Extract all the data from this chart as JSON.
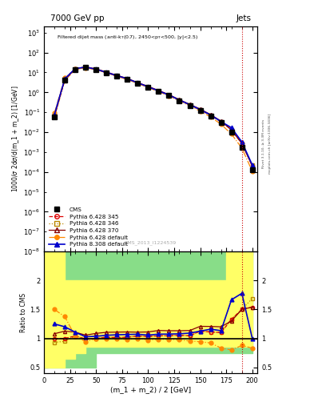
{
  "title_left": "7000 GeV pp",
  "title_right": "Jets",
  "annotation": "Filtered dijet mass (anti-k_{T}(0.7), 2450<p_{T}<500, |y|<2.5)",
  "watermark": "CMS_2013_I1224539",
  "right_label1": "Rivet 3.1.10, ≥ 3.3M events",
  "right_label2": "mcplots.cern.ch [arXiv:1306.3436]",
  "cms_x": [
    10,
    20,
    30,
    40,
    50,
    60,
    70,
    80,
    90,
    100,
    110,
    120,
    130,
    140,
    150,
    160,
    170,
    180,
    190,
    200
  ],
  "cms_y": [
    0.06,
    4.0,
    14.0,
    18.0,
    14.0,
    9.5,
    6.5,
    4.5,
    2.8,
    1.8,
    1.1,
    0.68,
    0.38,
    0.22,
    0.12,
    0.063,
    0.03,
    0.01,
    0.0018,
    0.00013
  ],
  "p6_345_x": [
    10,
    20,
    30,
    40,
    50,
    60,
    70,
    80,
    90,
    100,
    110,
    120,
    130,
    140,
    150,
    160,
    170,
    180,
    190,
    200
  ],
  "p6_345_y": [
    0.06,
    4.0,
    14.5,
    17.8,
    14.0,
    9.7,
    6.6,
    4.6,
    2.9,
    1.85,
    1.15,
    0.71,
    0.4,
    0.23,
    0.135,
    0.07,
    0.033,
    0.0133,
    0.0027,
    0.0002
  ],
  "p6_346_x": [
    10,
    20,
    30,
    40,
    50,
    60,
    70,
    80,
    90,
    100,
    110,
    120,
    130,
    140,
    150,
    160,
    170,
    180,
    190,
    200
  ],
  "p6_346_y": [
    0.056,
    3.8,
    14.5,
    17.8,
    14.0,
    9.7,
    6.6,
    4.6,
    2.9,
    1.85,
    1.15,
    0.71,
    0.4,
    0.23,
    0.135,
    0.07,
    0.033,
    0.0133,
    0.0027,
    0.00022
  ],
  "p6_370_x": [
    10,
    20,
    30,
    40,
    50,
    60,
    70,
    80,
    90,
    100,
    110,
    120,
    130,
    140,
    150,
    160,
    170,
    180,
    190,
    200
  ],
  "p6_370_y": [
    0.065,
    4.5,
    15.5,
    19.0,
    15.2,
    10.5,
    7.2,
    5.0,
    3.1,
    2.0,
    1.25,
    0.77,
    0.43,
    0.25,
    0.145,
    0.076,
    0.036,
    0.013,
    0.0027,
    0.0002
  ],
  "p6_def_x": [
    10,
    20,
    30,
    40,
    50,
    60,
    70,
    80,
    90,
    100,
    110,
    120,
    130,
    140,
    150,
    160,
    170,
    180,
    190,
    200
  ],
  "p6_def_y": [
    0.09,
    5.5,
    14.5,
    17.0,
    14.0,
    9.5,
    6.5,
    4.4,
    2.8,
    1.75,
    1.08,
    0.67,
    0.37,
    0.21,
    0.113,
    0.058,
    0.025,
    0.008,
    0.00158,
    0.000108
  ],
  "p8_def_x": [
    10,
    20,
    30,
    40,
    50,
    60,
    70,
    80,
    90,
    100,
    110,
    120,
    130,
    140,
    150,
    160,
    170,
    180,
    190,
    200
  ],
  "p8_def_y": [
    0.075,
    4.8,
    15.5,
    18.5,
    14.5,
    10.0,
    6.9,
    4.8,
    3.0,
    1.9,
    1.18,
    0.73,
    0.41,
    0.24,
    0.135,
    0.073,
    0.034,
    0.0167,
    0.0032,
    0.000226
  ],
  "ratio_x": [
    10,
    20,
    30,
    40,
    50,
    60,
    70,
    80,
    90,
    100,
    110,
    120,
    130,
    140,
    150,
    160,
    170,
    180,
    190,
    200
  ],
  "ratio_p6_345": [
    1.0,
    1.0,
    1.04,
    0.99,
    1.0,
    1.02,
    1.015,
    1.02,
    1.04,
    1.03,
    1.045,
    1.044,
    1.053,
    1.045,
    1.125,
    1.11,
    1.1,
    1.33,
    1.5,
    1.54
  ],
  "ratio_p6_346": [
    0.93,
    0.95,
    1.04,
    0.99,
    1.0,
    1.02,
    1.015,
    1.02,
    1.04,
    1.03,
    1.045,
    1.044,
    1.053,
    1.045,
    1.125,
    1.11,
    1.1,
    1.33,
    1.5,
    1.69
  ],
  "ratio_p6_370": [
    1.08,
    1.125,
    1.107,
    1.056,
    1.086,
    1.105,
    1.108,
    1.111,
    1.107,
    1.111,
    1.136,
    1.132,
    1.132,
    1.136,
    1.208,
    1.206,
    1.2,
    1.3,
    1.5,
    1.54
  ],
  "ratio_p6_def": [
    1.5,
    1.375,
    1.036,
    0.944,
    1.0,
    1.0,
    1.0,
    0.978,
    1.0,
    0.972,
    0.982,
    0.985,
    0.974,
    0.955,
    0.942,
    0.921,
    0.833,
    0.8,
    0.878,
    0.831
  ],
  "ratio_p8_def": [
    1.25,
    1.2,
    1.107,
    1.028,
    1.036,
    1.053,
    1.062,
    1.067,
    1.071,
    1.056,
    1.073,
    1.074,
    1.079,
    1.091,
    1.125,
    1.159,
    1.133,
    1.667,
    1.778,
    1.0
  ],
  "green_band_x": [
    0,
    10,
    10,
    20,
    20,
    30,
    30,
    50,
    50,
    70,
    70,
    90,
    90,
    120,
    120,
    150,
    150,
    180,
    180,
    200,
    200
  ],
  "green_band_lo": [
    0.5,
    0.5,
    0.5,
    0.5,
    0.5,
    0.5,
    0.5,
    0.5,
    0.75,
    0.75,
    0.75,
    0.75,
    0.75,
    0.75,
    0.75,
    0.75,
    0.75,
    0.75,
    0.75,
    0.75,
    0.75
  ],
  "green_band_hi": [
    2.5,
    2.5,
    2.5,
    2.5,
    2.5,
    2.5,
    2.5,
    2.5,
    2.5,
    2.5,
    2.5,
    2.5,
    2.5,
    2.5,
    2.5,
    2.5,
    2.5,
    2.5,
    2.5,
    2.5,
    2.5
  ],
  "yellow_band_x": [
    0,
    10,
    10,
    20,
    20,
    30,
    30,
    40,
    40,
    60,
    60,
    80,
    80,
    120,
    120,
    155,
    155,
    175,
    175,
    200,
    200
  ],
  "yellow_band_lo": [
    0.5,
    0.5,
    0.5,
    0.5,
    0.65,
    0.65,
    0.75,
    0.75,
    0.85,
    0.85,
    0.85,
    0.85,
    0.85,
    0.85,
    0.85,
    0.85,
    0.85,
    0.85,
    0.85,
    0.85,
    0.85
  ],
  "yellow_band_hi": [
    2.5,
    2.5,
    2.5,
    2.5,
    2.0,
    2.0,
    2.0,
    2.0,
    2.0,
    2.0,
    2.0,
    2.0,
    2.0,
    2.0,
    2.0,
    2.0,
    2.0,
    2.0,
    2.5,
    2.5,
    2.5
  ],
  "colors": {
    "cms": "#000000",
    "p6_345": "#dd0000",
    "p6_346": "#bb8800",
    "p6_370": "#880000",
    "p6_def": "#ff8800",
    "p8_def": "#0000cc"
  },
  "ylim_main": [
    1e-08,
    2000.0
  ],
  "ylim_ratio": [
    0.4,
    2.5
  ],
  "xlim": [
    0,
    205
  ],
  "dpi": 100,
  "figsize": [
    3.93,
    5.12
  ]
}
